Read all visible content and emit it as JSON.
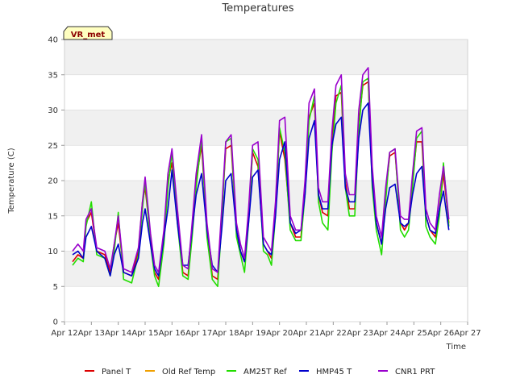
{
  "chart_data": {
    "type": "line",
    "title": "Temperatures",
    "xlabel": "Time",
    "ylabel": "Temperature (C)",
    "badge": "VR_met",
    "ylim": [
      0,
      40
    ],
    "yticks": [
      0,
      5,
      10,
      15,
      20,
      25,
      30,
      35,
      40
    ],
    "xlim": [
      12,
      27
    ],
    "xticks": [
      12,
      13,
      14,
      15,
      16,
      17,
      18,
      19,
      20,
      21,
      22,
      23,
      24,
      25,
      26,
      27
    ],
    "xtick_labels": [
      "Apr 12",
      "Apr 13",
      "Apr 14",
      "Apr 15",
      "Apr 16",
      "Apr 17",
      "Apr 18",
      "Apr 19",
      "Apr 20",
      "Apr 21",
      "Apr 22",
      "Apr 23",
      "Apr 24",
      "Apr 25",
      "Apr 26",
      "Apr 27"
    ],
    "grid": true,
    "legend_position": "bottom",
    "series": [
      {
        "name": "Panel T",
        "color": "#dd0000",
        "x": [
          12.3,
          12.5,
          12.7,
          12.8,
          13.0,
          13.2,
          13.5,
          13.7,
          13.85,
          14.0,
          14.2,
          14.5,
          14.75,
          14.9,
          15.0,
          15.2,
          15.35,
          15.5,
          15.7,
          15.85,
          16.0,
          16.2,
          16.4,
          16.6,
          16.75,
          16.9,
          17.1,
          17.3,
          17.5,
          17.7,
          17.85,
          18.0,
          18.2,
          18.4,
          18.55,
          18.7,
          18.85,
          19.0,
          19.2,
          19.4,
          19.55,
          19.7,
          19.85,
          20.0,
          20.2,
          20.4,
          20.6,
          20.8,
          20.95,
          21.1,
          21.3,
          21.45,
          21.6,
          21.8,
          21.95,
          22.1,
          22.3,
          22.45,
          22.6,
          22.8,
          22.95,
          23.1,
          23.3,
          23.45,
          23.6,
          23.8,
          23.95,
          24.1,
          24.3,
          24.5,
          24.65,
          24.8,
          24.95,
          25.1,
          25.3,
          25.45,
          25.6,
          25.8,
          25.95,
          26.1,
          26.3
        ],
        "y": [
          8.5,
          9.5,
          9,
          14,
          15.5,
          10,
          9.5,
          7,
          11,
          14,
          7,
          6.5,
          10,
          17,
          19,
          12,
          7,
          6,
          12,
          20,
          22.5,
          15,
          7,
          6.5,
          13,
          20,
          25,
          13,
          6.5,
          6,
          15,
          24.5,
          25,
          13,
          10,
          8.5,
          15,
          24,
          22,
          11,
          10,
          9,
          16,
          27,
          23,
          14,
          12,
          12,
          19,
          29,
          31,
          18,
          15.5,
          15,
          26,
          32,
          32.5,
          20,
          16,
          16,
          28,
          33.5,
          34,
          20,
          14,
          11,
          18,
          23.5,
          24,
          14,
          13,
          14,
          20,
          25.5,
          25.5,
          15,
          13,
          12,
          16,
          21,
          14
        ]
      },
      {
        "name": "Old Ref Temp",
        "color": "#f0a000",
        "x": [],
        "y": []
      },
      {
        "name": "AM25T Ref",
        "color": "#22dd00",
        "x": [
          12.3,
          12.5,
          12.7,
          12.8,
          13.0,
          13.2,
          13.5,
          13.7,
          13.85,
          14.0,
          14.2,
          14.5,
          14.75,
          14.9,
          15.0,
          15.2,
          15.35,
          15.5,
          15.7,
          15.85,
          16.0,
          16.2,
          16.4,
          16.6,
          16.75,
          16.9,
          17.1,
          17.3,
          17.5,
          17.7,
          17.85,
          18.0,
          18.2,
          18.4,
          18.55,
          18.7,
          18.85,
          19.0,
          19.2,
          19.4,
          19.55,
          19.7,
          19.85,
          20.0,
          20.2,
          20.4,
          20.6,
          20.8,
          20.95,
          21.1,
          21.3,
          21.45,
          21.6,
          21.8,
          21.95,
          22.1,
          22.3,
          22.45,
          22.6,
          22.8,
          22.95,
          23.1,
          23.3,
          23.45,
          23.6,
          23.8,
          23.95,
          24.1,
          24.3,
          24.5,
          24.65,
          24.8,
          24.95,
          25.1,
          25.3,
          25.45,
          25.6,
          25.8,
          25.95,
          26.1,
          26.3
        ],
        "y": [
          8,
          9,
          8.5,
          13.5,
          17,
          9.5,
          9,
          6.5,
          10,
          15.5,
          6,
          5.5,
          9.5,
          16,
          20,
          11,
          6.5,
          5,
          11,
          19,
          24,
          14,
          6.5,
          6,
          12,
          19,
          26,
          12,
          6,
          5,
          14,
          25.5,
          26,
          12,
          9.5,
          7,
          14,
          24.5,
          23,
          10,
          9.5,
          8,
          15,
          27.5,
          24,
          13,
          11.5,
          11.5,
          18,
          28.5,
          32,
          17,
          14,
          13,
          24,
          31,
          33.5,
          19,
          15,
          15,
          27,
          34,
          34.5,
          19,
          13,
          9.5,
          17,
          24,
          24.5,
          13,
          12,
          13,
          19,
          26,
          27,
          13.5,
          12,
          11,
          15,
          22.5,
          13.5
        ]
      },
      {
        "name": "HMP45 T",
        "color": "#0000cc",
        "x": [
          12.3,
          12.5,
          12.7,
          12.8,
          13.0,
          13.2,
          13.5,
          13.7,
          13.85,
          14.0,
          14.2,
          14.5,
          14.75,
          14.9,
          15.0,
          15.2,
          15.35,
          15.5,
          15.7,
          15.85,
          16.0,
          16.2,
          16.4,
          16.6,
          16.75,
          16.9,
          17.1,
          17.3,
          17.5,
          17.7,
          17.85,
          18.0,
          18.2,
          18.4,
          18.55,
          18.7,
          18.85,
          19.0,
          19.2,
          19.4,
          19.55,
          19.7,
          19.85,
          20.0,
          20.2,
          20.4,
          20.6,
          20.8,
          20.95,
          21.1,
          21.3,
          21.45,
          21.6,
          21.8,
          21.95,
          22.1,
          22.3,
          22.45,
          22.6,
          22.8,
          22.95,
          23.1,
          23.3,
          23.45,
          23.6,
          23.8,
          23.95,
          24.1,
          24.3,
          24.5,
          24.65,
          24.8,
          24.95,
          25.1,
          25.3,
          25.45,
          25.6,
          25.8,
          25.95,
          26.1,
          26.3
        ],
        "y": [
          9.5,
          10,
          9,
          12,
          13.5,
          10,
          9,
          6.5,
          9.5,
          11,
          7,
          6.5,
          9,
          14,
          16,
          11,
          7.5,
          6.5,
          12,
          16,
          21.5,
          14,
          8,
          8,
          13,
          18,
          21,
          13,
          8,
          7,
          13,
          20,
          21,
          13,
          10,
          8.5,
          14,
          20.5,
          21.5,
          11,
          10,
          9.5,
          15,
          23,
          25.5,
          14,
          12.5,
          13,
          18,
          26,
          28.5,
          18,
          16,
          16,
          25,
          28,
          29,
          19,
          17,
          17,
          26,
          30,
          31,
          20,
          14,
          11,
          16,
          19,
          19.5,
          14,
          13.5,
          14,
          18,
          21,
          22,
          15,
          13,
          12.5,
          16,
          18.5,
          13
        ]
      },
      {
        "name": "CNR1 PRT",
        "color": "#9900cc",
        "x": [
          12.3,
          12.5,
          12.7,
          12.8,
          13.0,
          13.2,
          13.5,
          13.7,
          13.85,
          14.0,
          14.2,
          14.5,
          14.75,
          14.9,
          15.0,
          15.2,
          15.35,
          15.5,
          15.7,
          15.85,
          16.0,
          16.2,
          16.4,
          16.6,
          16.75,
          16.9,
          17.1,
          17.3,
          17.5,
          17.7,
          17.85,
          18.0,
          18.2,
          18.4,
          18.55,
          18.7,
          18.85,
          19.0,
          19.2,
          19.4,
          19.55,
          19.7,
          19.85,
          20.0,
          20.2,
          20.4,
          20.6,
          20.8,
          20.95,
          21.1,
          21.3,
          21.45,
          21.6,
          21.8,
          21.95,
          22.1,
          22.3,
          22.45,
          22.6,
          22.8,
          22.95,
          23.1,
          23.3,
          23.45,
          23.6,
          23.8,
          23.95,
          24.1,
          24.3,
          24.5,
          24.65,
          24.8,
          24.95,
          25.1,
          25.3,
          25.45,
          25.6,
          25.8,
          25.95,
          26.1,
          26.3
        ],
        "y": [
          10,
          11,
          10,
          14.5,
          16,
          10.5,
          10,
          7.5,
          11,
          15,
          7.5,
          7,
          10.5,
          17,
          20.5,
          12.5,
          8,
          7,
          13,
          21,
          24.5,
          16,
          8,
          7.5,
          14,
          21,
          26.5,
          14,
          7.5,
          7,
          16,
          25.5,
          26.5,
          14,
          11,
          9,
          16,
          25,
          25.5,
          12,
          11,
          10,
          17,
          28.5,
          29,
          15,
          13,
          13,
          20,
          31,
          33,
          19,
          17,
          17,
          27,
          33.5,
          35,
          21,
          18,
          18,
          30,
          35,
          36,
          22,
          15,
          12,
          19,
          24,
          24.5,
          15,
          14.5,
          14.5,
          21,
          27,
          27.5,
          16,
          14,
          13,
          18,
          22,
          14.5
        ]
      }
    ]
  }
}
